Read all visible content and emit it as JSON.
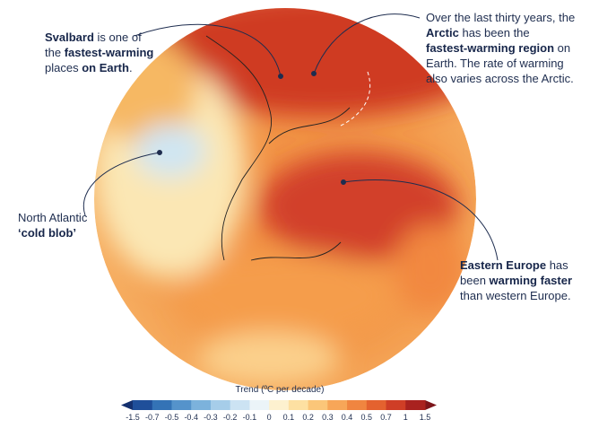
{
  "annotations": [
    {
      "lines": [
        [
          {
            "text": "Svalbard",
            "bold": true
          },
          {
            "text": " is one of",
            "bold": false
          }
        ],
        [
          {
            "text": "the ",
            "bold": false
          },
          {
            "text": "fastest-warming",
            "bold": true
          }
        ],
        [
          {
            "text": "places ",
            "bold": false
          },
          {
            "text": "on Earth",
            "bold": true
          },
          {
            "text": ".",
            "bold": false
          }
        ]
      ]
    },
    {
      "lines": [
        [
          {
            "text": "Over the last thirty years, the",
            "bold": false
          }
        ],
        [
          {
            "text": "Arctic",
            "bold": true
          },
          {
            "text": " has been the",
            "bold": false
          }
        ],
        [
          {
            "text": "fastest-warming region",
            "bold": true
          },
          {
            "text": " on",
            "bold": false
          }
        ],
        [
          {
            "text": "Earth. The rate of warming",
            "bold": false
          }
        ],
        [
          {
            "text": "also varies across the Arctic.",
            "bold": false
          }
        ]
      ]
    },
    {
      "lines": [
        [
          {
            "text": "North Atlantic",
            "bold": false
          }
        ],
        [
          {
            "text": "‘cold blob’",
            "bold": true
          }
        ]
      ]
    },
    {
      "lines": [
        [
          {
            "text": "Eastern Europe",
            "bold": true
          },
          {
            "text": " has",
            "bold": false
          }
        ],
        [
          {
            "text": "been ",
            "bold": false
          },
          {
            "text": "warming faster",
            "bold": true
          }
        ],
        [
          {
            "text": "than western Europe.",
            "bold": false
          }
        ]
      ]
    }
  ],
  "legend": {
    "title": "Trend (ºC per decade)",
    "ticks": [
      "-1.5",
      "-0.7",
      "-0.5",
      "-0.4",
      "-0.3",
      "-0.2",
      "-0.1",
      "0",
      "0.1",
      "0.2",
      "0.3",
      "0.4",
      "0.5",
      "0.7",
      "1",
      "1.5"
    ],
    "colors": [
      "#14306e",
      "#1f4f9a",
      "#3473b6",
      "#5593cb",
      "#7cb2dc",
      "#a6cde9",
      "#cce3f3",
      "#ebf4f8",
      "#fdf1cf",
      "#fde0a2",
      "#fbc679",
      "#f7a658",
      "#f08540",
      "#e4622f",
      "#cf3e26",
      "#a9221f",
      "#7c151a"
    ]
  }
}
